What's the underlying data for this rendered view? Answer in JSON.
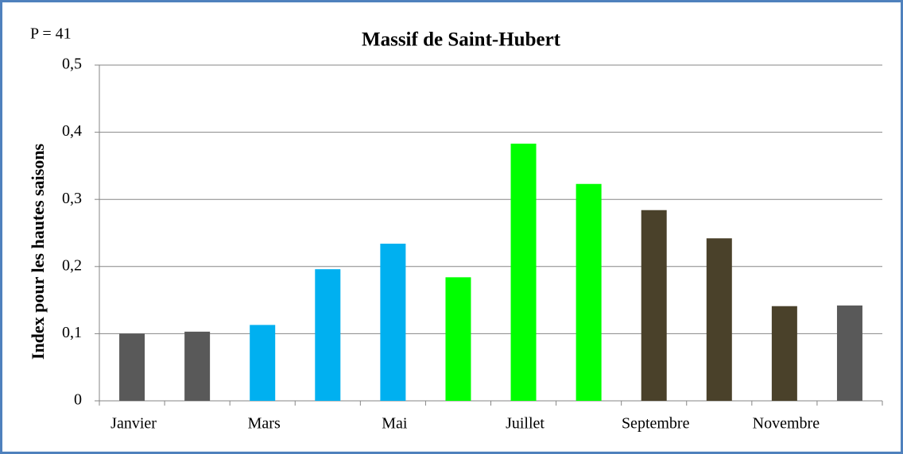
{
  "chart_data": {
    "type": "bar",
    "title": "Massif de Saint-Hubert",
    "annotation": "P = 41",
    "y_label": "Index pour les hautes saisons",
    "categories": [
      "Janvier",
      null,
      "Mars",
      null,
      "Mai",
      null,
      "Juillet",
      null,
      "Septembre",
      null,
      "Novembre",
      null
    ],
    "values": [
      0.1,
      0.103,
      0.113,
      0.196,
      0.234,
      0.184,
      0.383,
      0.323,
      0.284,
      0.242,
      0.141,
      0.142
    ],
    "colors": [
      "#595959",
      "#595959",
      "#00b0f0",
      "#00b0f0",
      "#00b0f0",
      "#00ff00",
      "#00ff00",
      "#00ff00",
      "#4a412a",
      "#4a412a",
      "#4a412a",
      "#595959"
    ],
    "ylim": [
      0,
      0.5
    ],
    "yticks": [
      0,
      {
        "value": 0.1,
        "label": "0,1"
      },
      {
        "value": 0.2,
        "label": "0,2"
      },
      {
        "value": 0.3,
        "label": "0,3"
      },
      {
        "value": 0.4,
        "label": "0,4"
      },
      {
        "value": 0.5,
        "label": "0,5"
      }
    ],
    "grid": true
  }
}
